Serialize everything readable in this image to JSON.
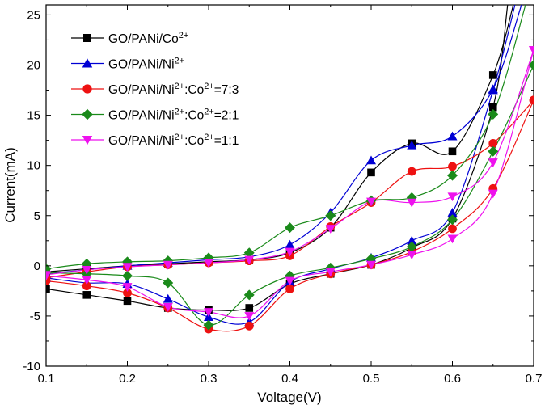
{
  "chart_data": {
    "type": "line",
    "title": "",
    "xlabel": "Voltage(V)",
    "ylabel": "Current(mA)",
    "xlim": [
      0.1,
      0.7
    ],
    "ylim": [
      -10,
      26
    ],
    "x_ticks": [
      "0.1",
      "0.2",
      "0.3",
      "0.4",
      "0.5",
      "0.6",
      "0.7"
    ],
    "y_ticks": [
      "-10",
      "-5",
      "0",
      "5",
      "10",
      "15",
      "20",
      "25"
    ],
    "x_tick_values": [
      0.1,
      0.2,
      0.3,
      0.4,
      0.5,
      0.6,
      0.7
    ],
    "y_tick_values": [
      -10,
      -5,
      0,
      5,
      10,
      15,
      20,
      25
    ],
    "grid": false,
    "legend_position": "top-left",
    "series": [
      {
        "name": "GO/PANi/Co",
        "name_sup": "2+",
        "name_suffix": "",
        "color": "#000000",
        "marker": "square",
        "anodic": [
          [
            0.1,
            -0.6
          ],
          [
            0.15,
            -0.3
          ],
          [
            0.2,
            0.0
          ],
          [
            0.25,
            0.2
          ],
          [
            0.3,
            0.4
          ],
          [
            0.35,
            0.6
          ],
          [
            0.4,
            1.3
          ],
          [
            0.45,
            3.8
          ],
          [
            0.5,
            9.3
          ],
          [
            0.55,
            12.2
          ],
          [
            0.6,
            11.4
          ],
          [
            0.65,
            19.0
          ],
          [
            0.675,
            26.0
          ]
        ],
        "cathodic": [
          [
            0.1,
            -2.3
          ],
          [
            0.15,
            -2.9
          ],
          [
            0.2,
            -3.5
          ],
          [
            0.25,
            -4.2
          ],
          [
            0.3,
            -4.4
          ],
          [
            0.35,
            -4.2
          ],
          [
            0.4,
            -1.8
          ],
          [
            0.45,
            -0.8
          ],
          [
            0.5,
            0.1
          ],
          [
            0.55,
            1.8
          ],
          [
            0.6,
            4.7
          ],
          [
            0.65,
            15.8
          ],
          [
            0.668,
            26.0
          ]
        ]
      },
      {
        "name": "GO/PANi/Ni",
        "name_sup": "2+",
        "name_suffix": "",
        "color": "#0000d4",
        "marker": "triangle-up",
        "anodic": [
          [
            0.1,
            -0.8
          ],
          [
            0.15,
            -0.4
          ],
          [
            0.2,
            0.0
          ],
          [
            0.25,
            0.3
          ],
          [
            0.3,
            0.6
          ],
          [
            0.35,
            0.9
          ],
          [
            0.4,
            2.1
          ],
          [
            0.45,
            5.3
          ],
          [
            0.5,
            10.5
          ],
          [
            0.55,
            12.0
          ],
          [
            0.6,
            12.9
          ],
          [
            0.65,
            17.6
          ],
          [
            0.685,
            26.0
          ]
        ],
        "cathodic": [
          [
            0.1,
            -1.2
          ],
          [
            0.15,
            -1.7
          ],
          [
            0.2,
            -1.8
          ],
          [
            0.25,
            -3.3
          ],
          [
            0.3,
            -5.1
          ],
          [
            0.35,
            -5.6
          ],
          [
            0.4,
            -1.6
          ],
          [
            0.45,
            -0.3
          ],
          [
            0.5,
            0.8
          ],
          [
            0.55,
            2.5
          ],
          [
            0.6,
            5.3
          ],
          [
            0.65,
            17.5
          ],
          [
            0.677,
            26.0
          ]
        ]
      },
      {
        "name": "GO/PANi/Ni",
        "name_sup": "2+",
        "name_suffix": ":Co",
        "name_sup2": "2+",
        "name_suffix2": "=7:3",
        "color": "#ee1111",
        "marker": "circle",
        "anodic": [
          [
            0.1,
            -1.2
          ],
          [
            0.15,
            -0.6
          ],
          [
            0.2,
            -0.1
          ],
          [
            0.25,
            0.1
          ],
          [
            0.3,
            0.3
          ],
          [
            0.35,
            0.5
          ],
          [
            0.4,
            1.0
          ],
          [
            0.45,
            3.9
          ],
          [
            0.5,
            6.3
          ],
          [
            0.55,
            9.4
          ],
          [
            0.6,
            9.9
          ],
          [
            0.65,
            12.2
          ],
          [
            0.7,
            16.5
          ]
        ],
        "cathodic": [
          [
            0.1,
            -1.5
          ],
          [
            0.15,
            -2.0
          ],
          [
            0.2,
            -2.7
          ],
          [
            0.25,
            -4.2
          ],
          [
            0.3,
            -6.3
          ],
          [
            0.35,
            -6.0
          ],
          [
            0.4,
            -2.3
          ],
          [
            0.45,
            -0.8
          ],
          [
            0.5,
            0.1
          ],
          [
            0.55,
            1.4
          ],
          [
            0.6,
            3.7
          ],
          [
            0.65,
            7.7
          ],
          [
            0.7,
            16.5
          ]
        ]
      },
      {
        "name": "GO/PANi/Ni",
        "name_sup": "2+",
        "name_suffix": ":Co",
        "name_sup2": "2+",
        "name_suffix2": "=2:1",
        "color": "#1a8a1a",
        "marker": "diamond",
        "anodic": [
          [
            0.1,
            -0.3
          ],
          [
            0.15,
            0.2
          ],
          [
            0.2,
            0.4
          ],
          [
            0.25,
            0.5
          ],
          [
            0.3,
            0.8
          ],
          [
            0.35,
            1.3
          ],
          [
            0.4,
            3.8
          ],
          [
            0.45,
            5.0
          ],
          [
            0.5,
            6.5
          ],
          [
            0.55,
            6.8
          ],
          [
            0.6,
            9.0
          ],
          [
            0.65,
            15.1
          ],
          [
            0.69,
            26.0
          ]
        ],
        "cathodic": [
          [
            0.1,
            -0.7
          ],
          [
            0.15,
            -0.8
          ],
          [
            0.2,
            -1.0
          ],
          [
            0.25,
            -1.7
          ],
          [
            0.3,
            -5.9
          ],
          [
            0.35,
            -2.9
          ],
          [
            0.4,
            -1.0
          ],
          [
            0.45,
            -0.2
          ],
          [
            0.5,
            0.7
          ],
          [
            0.55,
            1.9
          ],
          [
            0.6,
            4.6
          ],
          [
            0.65,
            11.4
          ],
          [
            0.7,
            20.0
          ]
        ]
      },
      {
        "name": "GO/PANi/Ni",
        "name_sup": "2+",
        "name_suffix": ":Co",
        "name_sup2": "2+",
        "name_suffix2": "=1:1",
        "color": "#ee11ee",
        "marker": "triangle-down",
        "anodic": [
          [
            0.1,
            -0.9
          ],
          [
            0.15,
            -0.4
          ],
          [
            0.2,
            -0.1
          ],
          [
            0.25,
            0.1
          ],
          [
            0.3,
            0.3
          ],
          [
            0.35,
            0.6
          ],
          [
            0.4,
            1.4
          ],
          [
            0.45,
            3.7
          ],
          [
            0.5,
            6.4
          ],
          [
            0.55,
            6.3
          ],
          [
            0.6,
            6.9
          ],
          [
            0.65,
            10.3
          ],
          [
            0.7,
            21.5
          ]
        ],
        "cathodic": [
          [
            0.1,
            -1.0
          ],
          [
            0.15,
            -1.4
          ],
          [
            0.2,
            -2.1
          ],
          [
            0.25,
            -4.1
          ],
          [
            0.3,
            -4.6
          ],
          [
            0.35,
            -5.0
          ],
          [
            0.4,
            -1.5
          ],
          [
            0.45,
            -0.6
          ],
          [
            0.5,
            0.1
          ],
          [
            0.55,
            1.1
          ],
          [
            0.6,
            2.7
          ],
          [
            0.65,
            7.2
          ],
          [
            0.7,
            21.5
          ]
        ]
      }
    ]
  }
}
